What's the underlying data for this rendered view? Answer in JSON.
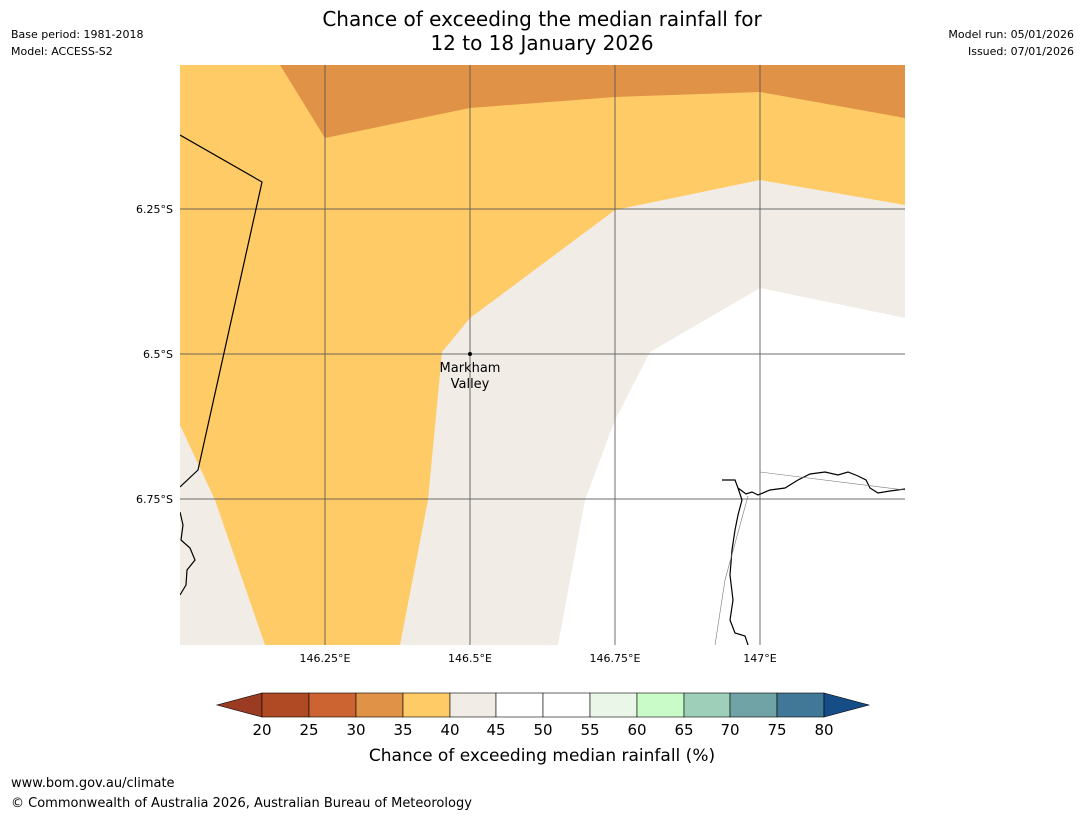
{
  "header": {
    "title_line1": "Chance of exceeding the median rainfall for",
    "title_line2": "12 to 18 January 2026",
    "base_period": "Base period: 1981-2018",
    "model": "Model: ACCESS-S2",
    "model_run": "Model run: 05/01/2026",
    "issued": "Issued: 07/01/2026"
  },
  "map": {
    "lat_labels": [
      "6.25°S",
      "6.5°S",
      "6.75°S"
    ],
    "lon_labels": [
      "146.25°E",
      "146.5°E",
      "146.75°E",
      "147°E"
    ],
    "place": {
      "name_line1": "Markham",
      "name_line2": "Valley"
    }
  },
  "colorbar": {
    "title": "Chance of exceeding median rainfall (%)",
    "ticks": [
      "20",
      "25",
      "30",
      "35",
      "40",
      "45",
      "50",
      "55",
      "60",
      "65",
      "70",
      "75",
      "80"
    ],
    "colors": {
      "below_20": "#9a3b22",
      "c20_25": "#b04a24",
      "c25_30": "#cc6431",
      "c30_35": "#e09246",
      "c35_40": "#fecb66",
      "c40_45": "#f1ece6",
      "c45_50": "#ffffff",
      "c50_55": "#ffffff",
      "c55_60": "#eaf6e8",
      "c60_65": "#c8fbc8",
      "c65_70": "#9ecfb8",
      "c70_75": "#6fa3a5",
      "c75_80": "#417897",
      "above_80": "#174d86"
    }
  },
  "footer": {
    "url": "www.bom.gov.au/climate",
    "copyright": "© Commonwealth of Australia 2026, Australian Bureau of Meteorology"
  }
}
